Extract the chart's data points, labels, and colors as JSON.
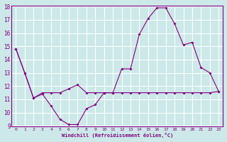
{
  "line1_x": [
    0,
    1,
    2,
    3,
    4,
    5,
    6,
    7,
    8,
    9,
    10,
    11,
    12,
    13,
    14,
    15,
    16,
    17,
    18,
    19,
    20,
    21,
    22,
    23
  ],
  "line1_y": [
    14.8,
    13.0,
    11.1,
    11.4,
    10.5,
    9.5,
    9.1,
    9.1,
    10.3,
    10.6,
    11.5,
    11.5,
    13.3,
    13.3,
    15.9,
    17.1,
    17.9,
    17.9,
    16.7,
    15.1,
    15.3,
    13.4,
    13.0,
    11.6
  ],
  "line2_x": [
    0,
    1,
    2,
    3,
    4,
    5,
    6,
    7,
    8,
    9,
    10,
    11,
    12,
    13,
    14,
    15,
    16,
    17,
    18,
    19,
    20,
    21,
    22,
    23
  ],
  "line2_y": [
    14.8,
    13.0,
    11.1,
    11.5,
    11.5,
    11.5,
    11.8,
    12.1,
    11.5,
    11.5,
    11.5,
    11.5,
    11.5,
    11.5,
    11.5,
    11.5,
    11.5,
    11.5,
    11.5,
    11.5,
    11.5,
    11.5,
    11.5,
    11.6
  ],
  "line_color": "#800080",
  "bg_color": "#cce8e8",
  "grid_color": "#ffffff",
  "xlabel": "Windchill (Refroidissement éolien,°C)",
  "ylim": [
    9,
    18
  ],
  "xlim": [
    -0.5,
    23.5
  ],
  "yticks": [
    9,
    10,
    11,
    12,
    13,
    14,
    15,
    16,
    17,
    18
  ],
  "xticks": [
    0,
    1,
    2,
    3,
    4,
    5,
    6,
    7,
    8,
    9,
    10,
    11,
    12,
    13,
    14,
    15,
    16,
    17,
    18,
    19,
    20,
    21,
    22,
    23
  ]
}
